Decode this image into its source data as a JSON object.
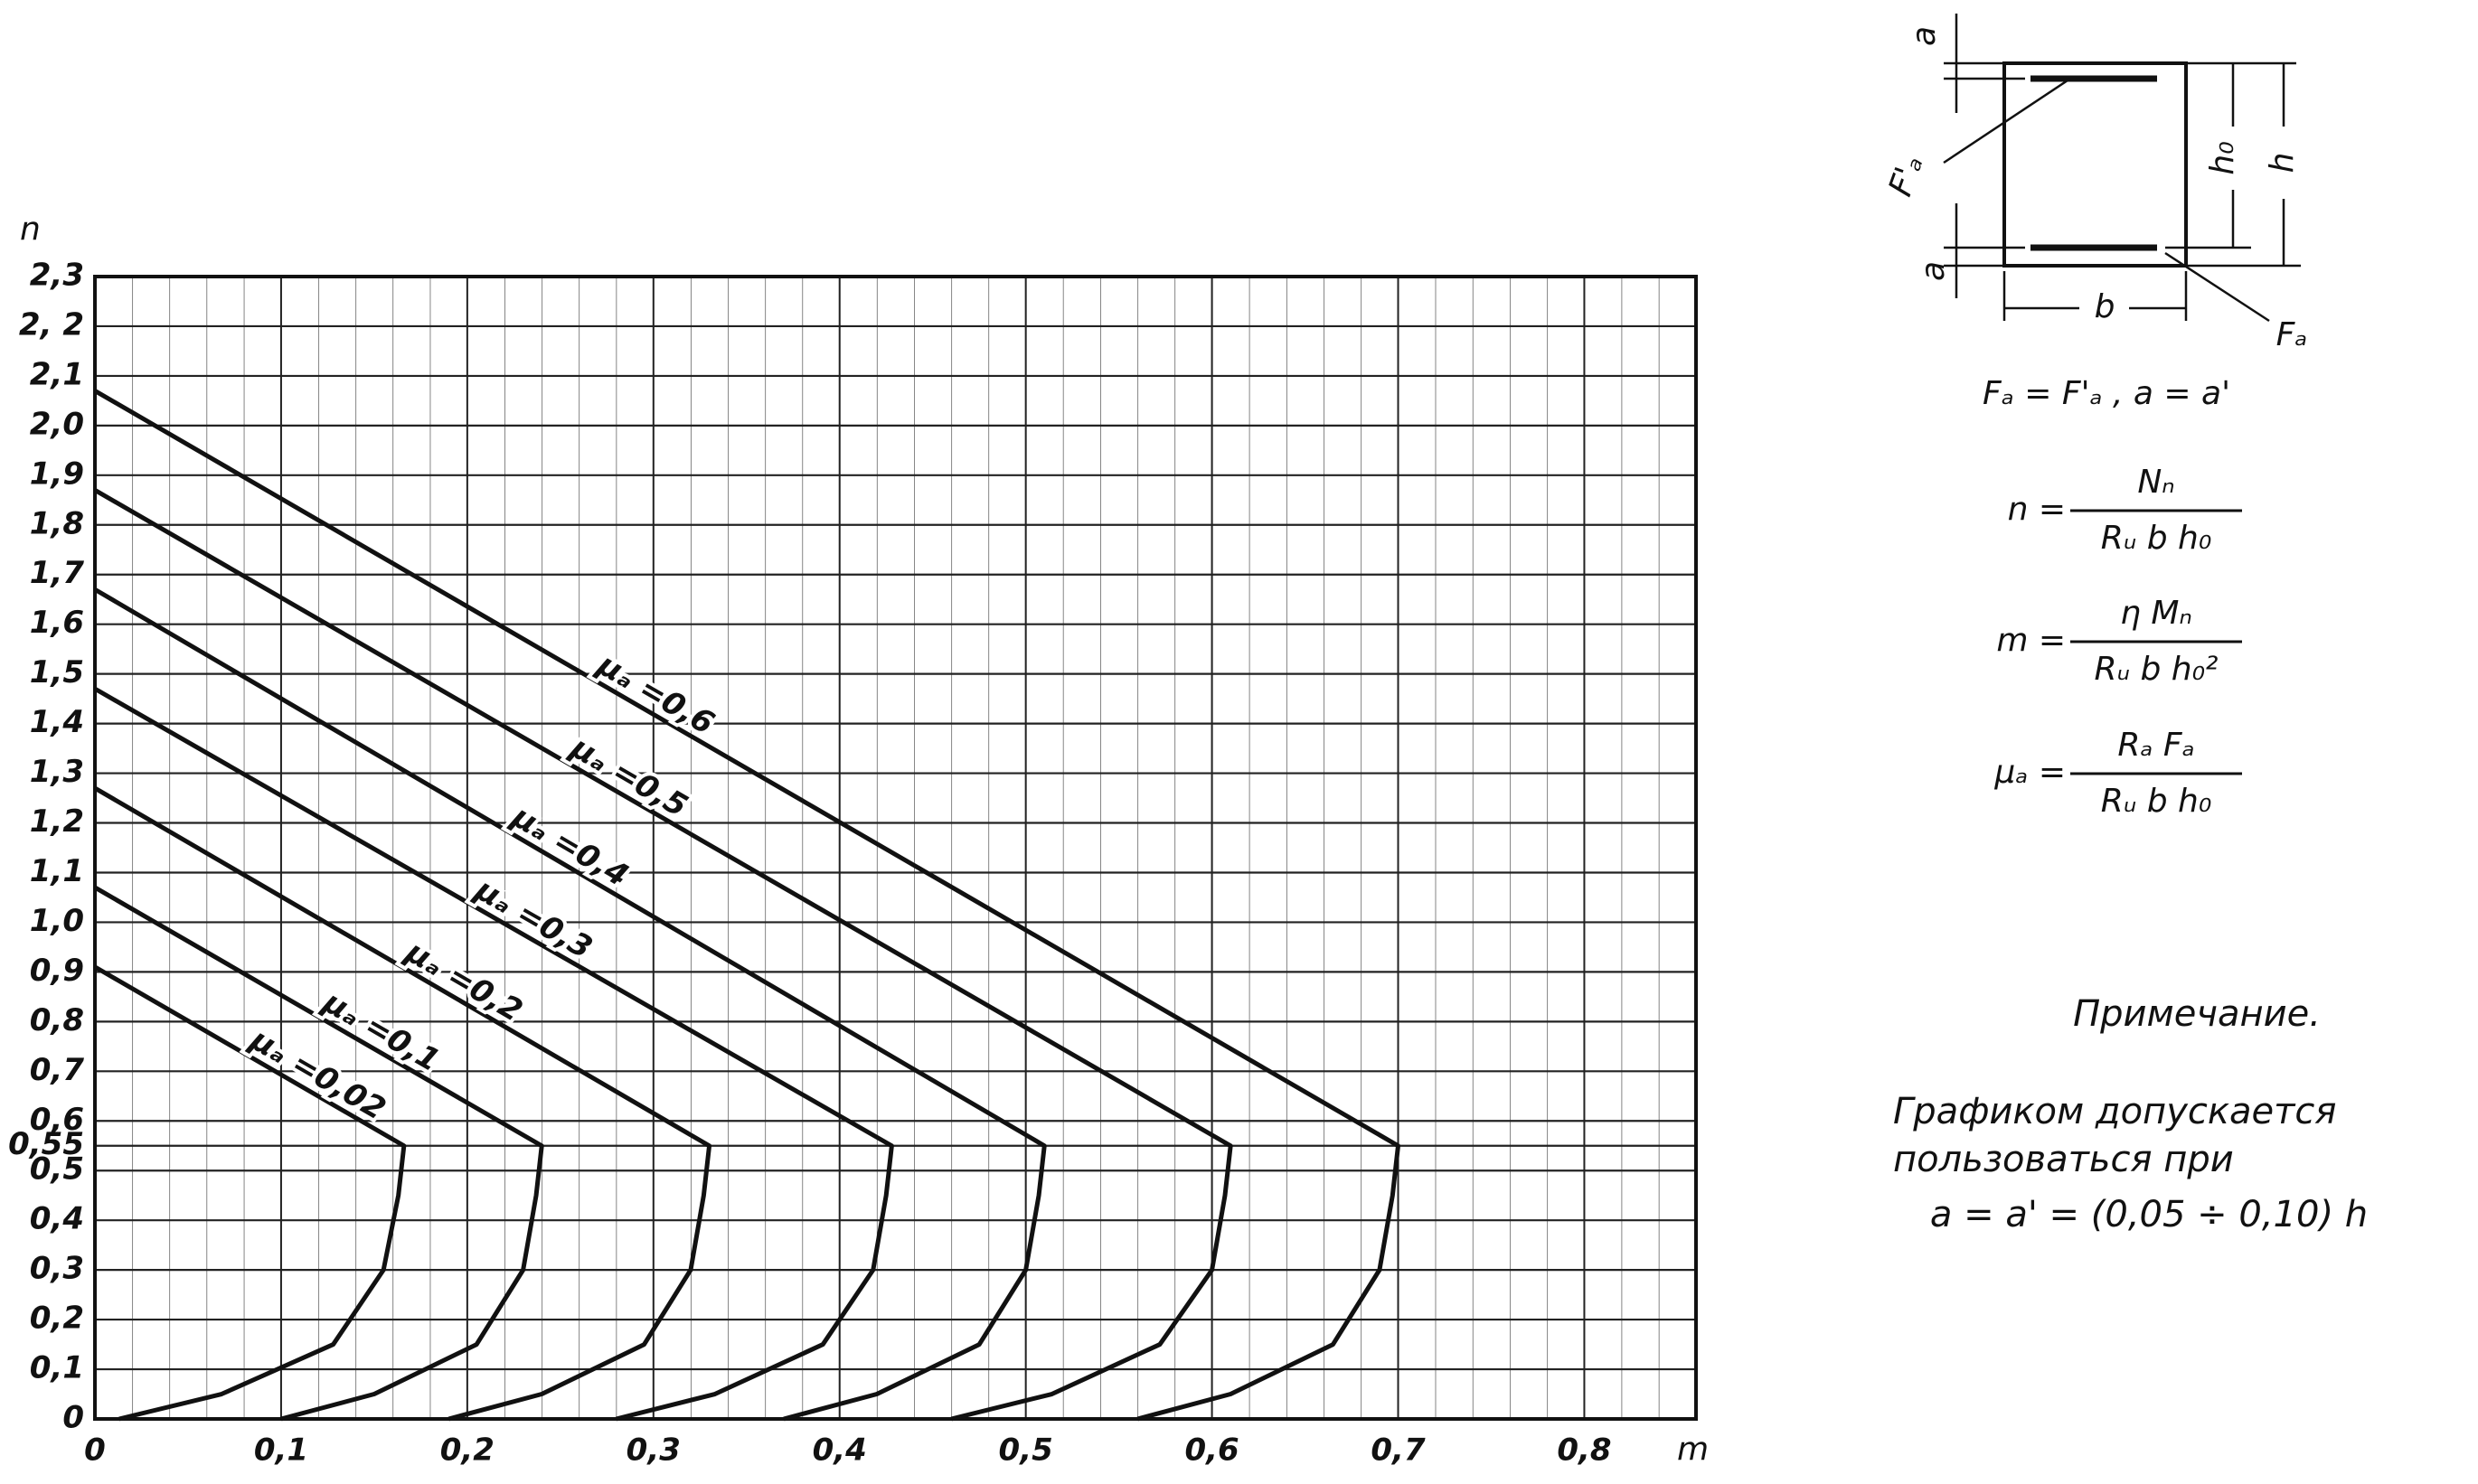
{
  "chart_data": {
    "type": "line",
    "xlabel": "m",
    "ylabel": "n",
    "xlim": [
      0,
      0.86
    ],
    "ylim": [
      0,
      2.3
    ],
    "xticks": [
      0,
      {
        "value": 0.1,
        "label": "0,1"
      },
      {
        "value": 0.2,
        "label": "0,2"
      },
      {
        "value": 0.3,
        "label": "0,3"
      },
      {
        "value": 0.4,
        "label": "0,4"
      },
      {
        "value": 0.5,
        "label": "0,5"
      },
      {
        "value": 0.6,
        "label": "0,6"
      },
      {
        "value": 0.7,
        "label": "0,7"
      },
      {
        "value": 0.8,
        "label": "0,8"
      }
    ],
    "yticks": [
      0,
      {
        "value": 0.1,
        "label": "0,1"
      },
      {
        "value": 0.2,
        "label": "0,2"
      },
      {
        "value": 0.3,
        "label": "0,3"
      },
      {
        "value": 0.4,
        "label": "0,4"
      },
      {
        "value": 0.5,
        "label": "0,5"
      },
      {
        "value": 0.55,
        "label": "0,55"
      },
      {
        "value": 0.6,
        "label": "0,6"
      },
      {
        "value": 0.7,
        "label": "0,7"
      },
      {
        "value": 0.8,
        "label": "0,8"
      },
      {
        "value": 0.9,
        "label": "0,9"
      },
      {
        "value": 1.0,
        "label": "1,0"
      },
      {
        "value": 1.1,
        "label": "1,1"
      },
      {
        "value": 1.2,
        "label": "1,2"
      },
      {
        "value": 1.3,
        "label": "1,3"
      },
      {
        "value": 1.4,
        "label": "1,4"
      },
      {
        "value": 1.5,
        "label": "1,5"
      },
      {
        "value": 1.6,
        "label": "1,6"
      },
      {
        "value": 1.7,
        "label": "1,7"
      },
      {
        "value": 1.8,
        "label": "1,8"
      },
      {
        "value": 1.9,
        "label": "1,9"
      },
      {
        "value": 2.0,
        "label": "2,0"
      },
      {
        "value": 2.1,
        "label": "2,1"
      },
      {
        "value": 2.2,
        "label": "2, 2"
      },
      {
        "value": 2.3,
        "label": "2,3"
      }
    ],
    "grid": true,
    "series": [
      {
        "name": "μₐ =0,02",
        "color": "#111111",
        "x": [
          0,
          0.166,
          0.163,
          0.155,
          0.128,
          0.068,
          0.013
        ],
        "values": [
          0.91,
          0.55,
          0.45,
          0.3,
          0.15,
          0.05,
          0
        ]
      },
      {
        "name": "μₐ =0,1",
        "color": "#111111",
        "x": [
          0,
          0.24,
          0.237,
          0.23,
          0.205,
          0.15,
          0.1
        ],
        "values": [
          1.07,
          0.55,
          0.45,
          0.3,
          0.15,
          0.05,
          0
        ]
      },
      {
        "name": "μₐ =0,2",
        "color": "#111111",
        "x": [
          0,
          0.33,
          0.327,
          0.32,
          0.295,
          0.24,
          0.19
        ],
        "values": [
          1.27,
          0.55,
          0.45,
          0.3,
          0.15,
          0.05,
          0
        ]
      },
      {
        "name": "μₐ =0,3",
        "color": "#111111",
        "x": [
          0,
          0.428,
          0.425,
          0.418,
          0.391,
          0.333,
          0.28
        ],
        "values": [
          1.47,
          0.55,
          0.45,
          0.3,
          0.15,
          0.05,
          0
        ]
      },
      {
        "name": "μₐ =0,4",
        "color": "#111111",
        "x": [
          0,
          0.51,
          0.507,
          0.5,
          0.475,
          0.42,
          0.37
        ],
        "values": [
          1.67,
          0.55,
          0.45,
          0.3,
          0.15,
          0.05,
          0
        ]
      },
      {
        "name": "μₐ =0,5",
        "color": "#111111",
        "x": [
          0,
          0.61,
          0.607,
          0.6,
          0.572,
          0.514,
          0.46
        ],
        "values": [
          1.87,
          0.55,
          0.45,
          0.3,
          0.15,
          0.05,
          0
        ]
      },
      {
        "name": "μₐ =0,6",
        "color": "#111111",
        "x": [
          0,
          0.7,
          0.697,
          0.69,
          0.665,
          0.61,
          0.56
        ],
        "values": [
          2.07,
          0.55,
          0.45,
          0.3,
          0.15,
          0.05,
          0
        ]
      }
    ]
  },
  "section": {
    "a_top": "a",
    "h0": "h₀",
    "h": "h",
    "fa_prime": "F'ₐ",
    "a_bottom": "a",
    "b": "b",
    "fa": "Fₐ",
    "equality": "Fₐ = F'ₐ , a = a'"
  },
  "formulas": [
    {
      "lhs": "n =",
      "numerator": "Nₙ",
      "denominator": "Rᵤ b h₀"
    },
    {
      "lhs": "m =",
      "numerator": "η Mₙ",
      "denominator": "Rᵤ b h₀²"
    },
    {
      "lhs": "μₐ =",
      "numerator": "Rₐ Fₐ",
      "denominator": "Rᵤ b h₀"
    }
  ],
  "note": {
    "title": "Примечание.",
    "lines": [
      "Графиком допускается",
      "пользоваться при",
      "a = a' = (0,05 ÷ 0,10) h"
    ]
  }
}
